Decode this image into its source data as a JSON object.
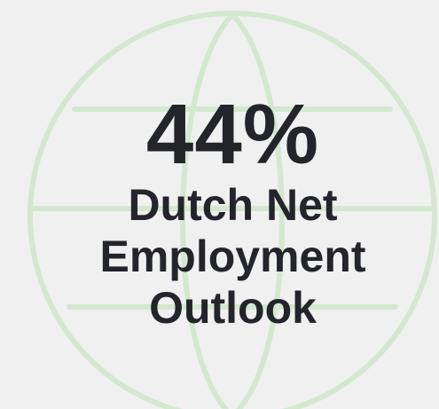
{
  "colors": {
    "background": "#f0f0f0",
    "globe_lines": "#d3e8cf",
    "text": "#23252b"
  },
  "stat": {
    "value": "44%",
    "label_line_1": "Dutch Net",
    "label_line_2": "Employment",
    "label_line_3": "Outlook"
  },
  "icons": {
    "background": "globe-icon"
  }
}
